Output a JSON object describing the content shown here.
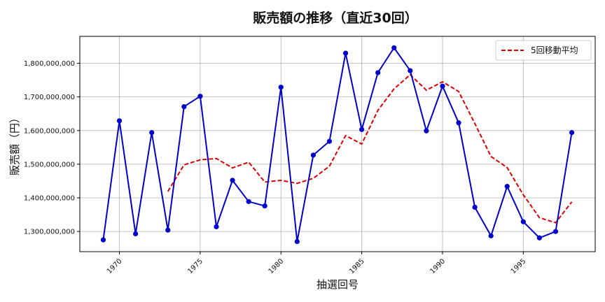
{
  "chart_data": {
    "type": "line",
    "title": "販売額の推移（直近30回）",
    "xlabel": "抽選回号",
    "ylabel": "販売額（円）",
    "x": [
      1969,
      1970,
      1971,
      1972,
      1973,
      1974,
      1975,
      1976,
      1977,
      1978,
      1979,
      1980,
      1981,
      1982,
      1983,
      1984,
      1985,
      1986,
      1987,
      1988,
      1989,
      1990,
      1991,
      1992,
      1993,
      1994,
      1995,
      1996,
      1997,
      1998
    ],
    "series": [
      {
        "name": "",
        "color": "#0000cc",
        "style": "solid-markers",
        "values": [
          1275000000,
          1629000000,
          1293000000,
          1594000000,
          1304000000,
          1671000000,
          1702000000,
          1314000000,
          1452000000,
          1389000000,
          1376000000,
          1729000000,
          1270000000,
          1527000000,
          1568000000,
          1830000000,
          1603000000,
          1772000000,
          1846000000,
          1778000000,
          1599000000,
          1732000000,
          1623000000,
          1372000000,
          1287000000,
          1434000000,
          1329000000,
          1281000000,
          1300000000,
          1594000000
        ]
      },
      {
        "name": "5回移動平均",
        "color": "#dd0000",
        "style": "dashed",
        "values": [
          null,
          null,
          null,
          null,
          1419000000,
          1498000000,
          1513000000,
          1517000000,
          1489000000,
          1506000000,
          1447000000,
          1452000000,
          1443000000,
          1458000000,
          1494000000,
          1585000000,
          1560000000,
          1660000000,
          1724000000,
          1766000000,
          1720000000,
          1745000000,
          1716000000,
          1621000000,
          1523000000,
          1490000000,
          1409000000,
          1341000000,
          1326000000,
          1388000000
        ]
      }
    ],
    "xticks": [
      1970,
      1975,
      1980,
      1985,
      1990,
      1995
    ],
    "yticks": [
      1300000000,
      1400000000,
      1500000000,
      1600000000,
      1700000000,
      1800000000
    ],
    "xlim": [
      1967.55,
      1999.45
    ],
    "ylim": [
      1240000000,
      1880000000
    ],
    "grid": true,
    "legend_position": "top-right"
  }
}
